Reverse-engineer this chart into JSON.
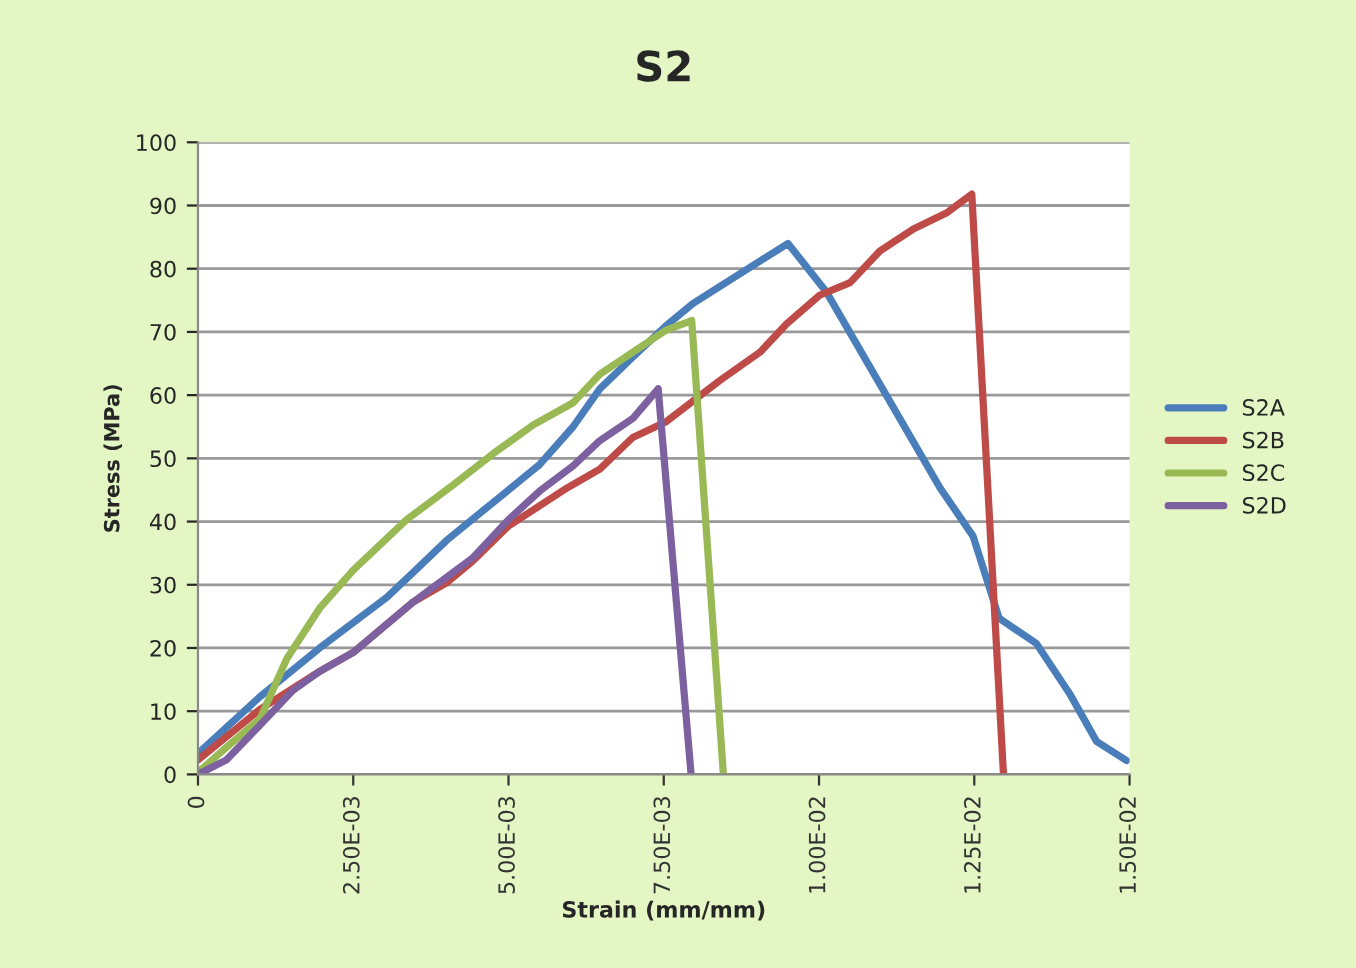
{
  "chart_data": {
    "type": "line",
    "title": "S2",
    "xlabel": "Strain (mm/mm)",
    "ylabel": "Stress (MPa)",
    "xlim": [
      0,
      0.015
    ],
    "xticks": [
      0,
      {
        "value": 0.0025,
        "label": "2.50E-03"
      },
      {
        "value": 0.005,
        "label": "5.00E-03"
      },
      {
        "value": 0.0075,
        "label": "7.50E-03"
      },
      {
        "value": 0.01,
        "label": "1.00E-02"
      },
      {
        "value": 0.0125,
        "label": "1.25E-02"
      },
      {
        "value": 0.015,
        "label": "1.50E-02"
      }
    ],
    "ylim": [
      0,
      100
    ],
    "yticks": [
      0,
      10,
      20,
      30,
      40,
      50,
      60,
      70,
      80,
      90,
      100
    ],
    "grid": "y",
    "legend": "right",
    "marker": "none",
    "line_style": "solid",
    "series": [
      {
        "name": "S2A",
        "color": "#4a7ebb",
        "x": [
          0,
          0.001,
          0.00196,
          0.0025,
          0.00304,
          0.00347,
          0.004,
          0.005,
          0.0055,
          0.00604,
          0.00647,
          0.007,
          0.00754,
          0.00797,
          0.0095,
          0.01012,
          0.01195,
          0.01248,
          0.0129,
          0.0135,
          0.01404,
          0.01447,
          0.01495
        ],
        "values": [
          3.3,
          12.3,
          20,
          24,
          28,
          32,
          37,
          45,
          49,
          55,
          61,
          66,
          71,
          74.5,
          84,
          76.3,
          45.3,
          37.7,
          24.7,
          20.7,
          12.7,
          5.2,
          2.2
        ]
      },
      {
        "name": "S2B",
        "color": "#be4b48",
        "x": [
          0,
          0.001,
          0.00196,
          0.0025,
          0.00347,
          0.004,
          0.00443,
          0.005,
          0.00594,
          0.00647,
          0.007,
          0.00754,
          0.0084,
          0.00905,
          0.00948,
          0.01001,
          0.0105,
          0.01098,
          0.01152,
          0.01205,
          0.01246,
          0.01297
        ],
        "values": [
          2.3,
          10.3,
          16.3,
          19.3,
          27.3,
          30.3,
          33.8,
          39.3,
          45.3,
          48.3,
          53.3,
          55.8,
          62.3,
          66.8,
          71.3,
          75.8,
          77.8,
          82.8,
          86.3,
          88.8,
          91.8,
          0
        ]
      },
      {
        "name": "S2C",
        "color": "#98b954",
        "x": [
          0,
          0.00046,
          0.001,
          0.00143,
          0.00196,
          0.0025,
          0.00336,
          0.00411,
          0.00476,
          0.0054,
          0.00604,
          0.00647,
          0.007,
          0.00754,
          0.00795,
          0.00846
        ],
        "values": [
          0.3,
          4.3,
          8.8,
          18.3,
          26.3,
          32.3,
          40.3,
          45.8,
          50.8,
          55.3,
          58.8,
          63.3,
          66.8,
          70.3,
          71.8,
          0
        ]
      },
      {
        "name": "S2D",
        "color": "#7d60a0",
        "x": [
          0,
          0.00046,
          0.001,
          0.00153,
          0.00196,
          0.0025,
          0.00347,
          0.00443,
          0.005,
          0.0055,
          0.00604,
          0.00647,
          0.007,
          0.00741,
          0.00794
        ],
        "values": [
          0,
          2.3,
          7.8,
          13.3,
          16.3,
          19.3,
          27.3,
          34.3,
          40.3,
          44.8,
          48.8,
          52.8,
          56.3,
          61,
          0
        ]
      }
    ]
  }
}
